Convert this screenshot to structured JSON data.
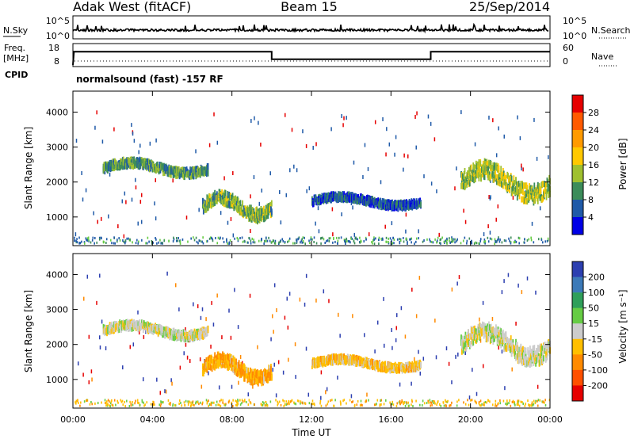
{
  "header": {
    "station": "Adak West (fitACF)",
    "beam": "Beam 15",
    "date": "25/Sep/2014"
  },
  "panels": {
    "nsky_label": "N.Sky",
    "nsearch_label": "N.Search",
    "nsky_ticks": [
      "10^5",
      "10^0"
    ],
    "nsearch_ticks": [
      "10^5",
      "10^0"
    ],
    "freq_label": "Freq.",
    "freq_unit": "[MHz]",
    "freq_ticks": [
      "18",
      "8"
    ],
    "nave_label": "Nave",
    "nave_ticks": [
      "60",
      "0"
    ],
    "cpid_label": "CPID",
    "cpid_text": "normalsound (fast) -157 RF"
  },
  "axes": {
    "xlabel": "Time UT",
    "x_ticks": [
      "00:00",
      "04:00",
      "08:00",
      "12:00",
      "16:00",
      "20:00",
      "00:00"
    ],
    "ylabel": "Slant Range [km]",
    "y_ticks": [
      "4000",
      "3000",
      "2000",
      "1000"
    ]
  },
  "colorbars": {
    "power": {
      "label": "Power [dB]",
      "ticks": [
        "28",
        "24",
        "20",
        "16",
        "12",
        "8",
        "4"
      ],
      "colors": [
        "#e60000",
        "#ff5a00",
        "#ff9a00",
        "#ffc800",
        "#9fc02f",
        "#3c8c5a",
        "#1f5aa8",
        "#0000e6"
      ]
    },
    "velocity": {
      "label": "Velocity [m s⁻¹]",
      "ticks": [
        "200",
        "100",
        "50",
        "15",
        "-15",
        "-50",
        "-100",
        "-200"
      ],
      "colors": [
        "#2c3fb0",
        "#3c7ab8",
        "#2f9f5a",
        "#66cc44",
        "#cccccc",
        "#ffbf00",
        "#ff8a00",
        "#ff5000",
        "#e60000"
      ]
    }
  },
  "chart_data": [
    {
      "type": "heatmap",
      "title": "Power",
      "xlabel": "Time UT",
      "ylabel": "Slant Range [km]",
      "xlim": [
        0,
        24
      ],
      "ylim": [
        180,
        4600
      ],
      "colorbar_label": "Power [dB]",
      "colorbar_range": [
        0,
        32
      ],
      "echo_regions": [
        {
          "t_start": 1.5,
          "t_end": 6.8,
          "range_km": [
            2100,
            2700
          ],
          "value": 10
        },
        {
          "t_start": 6.5,
          "t_end": 10.0,
          "range_km": [
            800,
            1800
          ],
          "value": 12
        },
        {
          "t_start": 12.0,
          "t_end": 17.5,
          "range_km": [
            1200,
            1700
          ],
          "value": 6
        },
        {
          "t_start": 19.5,
          "t_end": 24.0,
          "range_km": [
            1300,
            2700
          ],
          "value": 14
        }
      ]
    },
    {
      "type": "heatmap",
      "title": "Velocity",
      "xlabel": "Time UT",
      "ylabel": "Slant Range [km]",
      "xlim": [
        0,
        24
      ],
      "ylim": [
        180,
        4600
      ],
      "colorbar_label": "Velocity [m s⁻¹]",
      "colorbar_range": [
        -200,
        200
      ],
      "echo_regions": [
        {
          "t_start": 1.5,
          "t_end": 6.8,
          "range_km": [
            2100,
            2700
          ],
          "value": 0
        },
        {
          "t_start": 6.5,
          "t_end": 10.0,
          "range_km": [
            800,
            1800
          ],
          "value": -60
        },
        {
          "t_start": 12.0,
          "t_end": 17.5,
          "range_km": [
            1200,
            1700
          ],
          "value": -40
        },
        {
          "t_start": 19.5,
          "t_end": 24.0,
          "range_km": [
            1300,
            2700
          ],
          "value": 0
        }
      ]
    },
    {
      "type": "line",
      "title": "Freq.",
      "ylabel": "[MHz]",
      "xlim": [
        0,
        24
      ],
      "ylim": [
        8,
        18
      ],
      "x": [
        0,
        0.05,
        10,
        10,
        18,
        18,
        24
      ],
      "y": [
        8,
        15,
        15,
        11,
        11,
        15,
        15
      ]
    }
  ]
}
